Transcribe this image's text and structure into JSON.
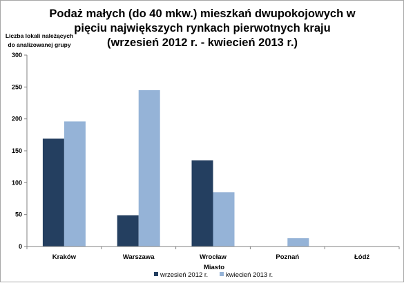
{
  "chart_data": {
    "type": "bar",
    "title": [
      "Podaż małych (do 40 mkw.) mieszkań dwupokojowych w",
      "pięciu największych rynkach pierwotnych kraju",
      "(wrzesień  2012 r. - kwiecień  2013 r.)"
    ],
    "ylabel": [
      "Liczba lokali należących",
      "do analizowanej grupy"
    ],
    "xlabel": "Miasto",
    "categories": [
      "Kraków",
      "Warszawa",
      "Wrocław",
      "Poznań",
      "Łódź"
    ],
    "series": [
      {
        "name": "wrzesień 2012 r.",
        "color": "#243f60",
        "values": [
          169,
          49,
          135,
          0,
          0
        ]
      },
      {
        "name": "kwiecień 2013 r.",
        "color": "#95b3d7",
        "values": [
          196,
          245,
          85,
          13,
          0
        ]
      }
    ],
    "ylim": [
      0,
      300
    ],
    "yticks": [
      0,
      50,
      100,
      150,
      200,
      250,
      300
    ],
    "grid": false,
    "legend": "bottom"
  }
}
